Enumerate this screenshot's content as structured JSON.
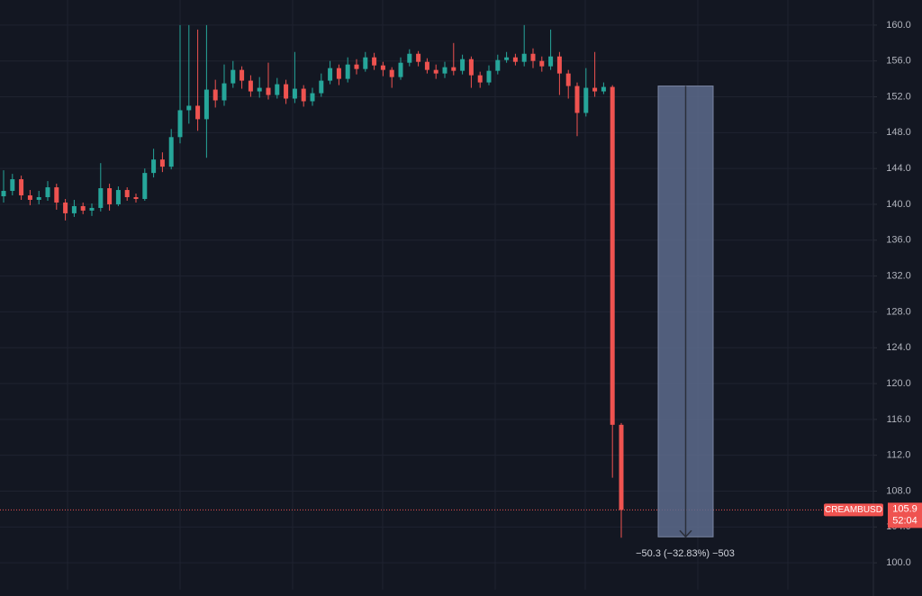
{
  "chart_data": {
    "type": "candlestick",
    "open": [
      140.9,
      141.5,
      142.8,
      141.0,
      140.5,
      140.8,
      141.9,
      140.2,
      139.0,
      139.8,
      139.3,
      139.6,
      141.8,
      140.0,
      141.6,
      140.8,
      140.6,
      143.5,
      145.0,
      144.2,
      147.5,
      150.5,
      151.0,
      149.5,
      152.8,
      151.6,
      153.5,
      155.0,
      153.8,
      152.6,
      153.0,
      152.2,
      153.4,
      151.8,
      152.9,
      151.5,
      152.4,
      153.8,
      155.2,
      154.0,
      155.6,
      155.1,
      156.4,
      155.5,
      155.0,
      154.2,
      155.8,
      156.8,
      155.9,
      155.0,
      154.6,
      155.3,
      154.9,
      156.2,
      154.4,
      153.6,
      154.9,
      156.1,
      156.4,
      155.9,
      156.8,
      156.0,
      155.4,
      156.5,
      154.6,
      153.2,
      150.2,
      153.0,
      152.6,
      153.1,
      115.4
    ],
    "high": [
      143.8,
      143.4,
      143.2,
      141.6,
      141.5,
      142.6,
      142.3,
      140.6,
      140.5,
      140.2,
      140.1,
      144.6,
      142.3,
      142.0,
      141.9,
      141.2,
      144.0,
      146.2,
      145.8,
      148.4,
      160.0,
      160.0,
      159.5,
      160.0,
      153.9,
      155.6,
      156.0,
      155.4,
      154.4,
      154.2,
      155.8,
      154.1,
      153.9,
      157.0,
      153.3,
      153.0,
      154.6,
      156.0,
      155.6,
      156.4,
      156.2,
      157.0,
      156.9,
      155.9,
      155.3,
      156.4,
      157.3,
      157.1,
      156.3,
      155.6,
      155.9,
      158.0,
      156.7,
      156.5,
      154.8,
      155.5,
      156.7,
      157.0,
      156.8,
      160.0,
      157.4,
      156.5,
      159.5,
      157.0,
      155.0,
      153.6,
      155.2,
      157.0,
      153.6,
      153.3,
      115.6
    ],
    "low": [
      140.2,
      141.0,
      140.5,
      139.9,
      140.0,
      140.4,
      139.4,
      138.2,
      138.6,
      138.9,
      138.7,
      139.2,
      139.3,
      139.8,
      140.4,
      140.2,
      140.4,
      143.0,
      143.6,
      143.9,
      146.8,
      149.0,
      148.2,
      145.2,
      150.8,
      151.0,
      153.0,
      152.9,
      152.0,
      151.9,
      151.7,
      151.8,
      151.2,
      151.3,
      150.9,
      151.0,
      152.0,
      153.4,
      153.3,
      153.6,
      154.5,
      154.8,
      155.0,
      154.3,
      153.0,
      153.9,
      155.4,
      155.4,
      154.6,
      154.0,
      154.1,
      154.4,
      154.5,
      153.0,
      153.0,
      153.3,
      154.5,
      155.8,
      155.5,
      155.4,
      155.2,
      154.8,
      155.0,
      152.2,
      151.8,
      147.6,
      149.8,
      152.0,
      152.3,
      109.5,
      102.8
    ],
    "close": [
      141.5,
      142.8,
      141.0,
      140.5,
      140.8,
      141.9,
      140.2,
      139.0,
      139.8,
      139.3,
      139.6,
      141.8,
      140.0,
      141.6,
      140.8,
      140.6,
      143.5,
      145.0,
      144.2,
      147.5,
      150.5,
      151.0,
      149.5,
      152.8,
      151.6,
      153.5,
      155.0,
      153.8,
      152.6,
      153.0,
      152.2,
      153.4,
      151.8,
      152.9,
      151.5,
      152.4,
      153.8,
      155.2,
      154.0,
      155.6,
      155.1,
      156.4,
      155.5,
      155.0,
      154.2,
      155.8,
      156.8,
      155.9,
      155.0,
      154.6,
      155.3,
      154.9,
      156.2,
      154.4,
      153.6,
      154.9,
      156.1,
      156.4,
      155.9,
      156.8,
      156.0,
      155.4,
      156.5,
      154.6,
      153.2,
      150.2,
      153.0,
      152.6,
      153.1,
      115.4,
      105.9
    ],
    "up_color": "#26a69a",
    "down_color": "#ef5350",
    "ylim": [
      97,
      162.8
    ],
    "yticks": [
      {
        "value": 100,
        "label": "100.0"
      },
      {
        "value": 104,
        "label": "104.0"
      },
      {
        "value": 108,
        "label": "108.0"
      },
      {
        "value": 112,
        "label": "112.0"
      },
      {
        "value": 116,
        "label": "116.0"
      },
      {
        "value": 120,
        "label": "120.0"
      },
      {
        "value": 124,
        "label": "124.0"
      },
      {
        "value": 128,
        "label": "128.0"
      },
      {
        "value": 132,
        "label": "132.0"
      },
      {
        "value": 136,
        "label": "136.0"
      },
      {
        "value": 140,
        "label": "140.0"
      },
      {
        "value": 144,
        "label": "144.0"
      },
      {
        "value": 148,
        "label": "148.0"
      },
      {
        "value": 152,
        "label": "152.0"
      },
      {
        "value": 156,
        "label": "156.0"
      },
      {
        "value": 160,
        "label": "160.0"
      }
    ],
    "grid": true,
    "last_price": {
      "symbol": "CREAMBUSD",
      "value": 105.9,
      "countdown": "52:04"
    },
    "measure": {
      "from": 153.2,
      "to": 102.9,
      "label": "−50.3 (−32.83%) −503"
    }
  }
}
